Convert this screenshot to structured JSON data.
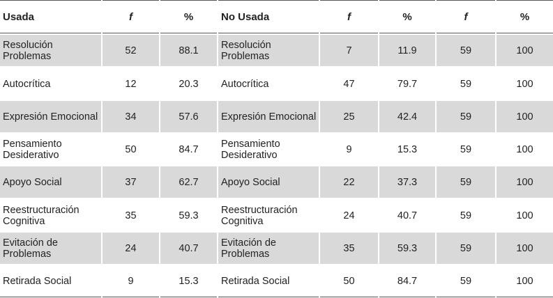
{
  "header": {
    "usada": "Usada",
    "f1": "f",
    "p1": "%",
    "no_usada": "No Usada",
    "f2": "f",
    "p2": "%",
    "f3": "f",
    "p3": "%"
  },
  "rows": [
    {
      "usada": "Resolución Problemas",
      "f1": "52",
      "p1": "88.1",
      "no_usada": "Resolución Problemas",
      "f2": "7",
      "p2": "11.9",
      "f3": "59",
      "p3": "100",
      "shaded": true
    },
    {
      "usada": "Autocrítica",
      "f1": "12",
      "p1": "20.3",
      "no_usada": "Autocrítica",
      "f2": "47",
      "p2": "79.7",
      "f3": "59",
      "p3": "100",
      "shaded": false
    },
    {
      "usada": "Expresión Emocional",
      "f1": "34",
      "p1": "57.6",
      "no_usada": "Expresión Emocional",
      "f2": "25",
      "p2": "42.4",
      "f3": "59",
      "p3": "100",
      "shaded": true
    },
    {
      "usada": "Pensamiento Desiderativo",
      "f1": "50",
      "p1": "84.7",
      "no_usada": "Pensamiento Desiderativo",
      "f2": "9",
      "p2": "15.3",
      "f3": "59",
      "p3": "100",
      "shaded": false
    },
    {
      "usada": "Apoyo Social",
      "f1": "37",
      "p1": "62.7",
      "no_usada": "Apoyo Social",
      "f2": "22",
      "p2": "37.3",
      "f3": "59",
      "p3": "100",
      "shaded": true
    },
    {
      "usada": "Reestructuración Cognitiva",
      "f1": "35",
      "p1": "59.3",
      "no_usada": "Reestructuración Cognitiva",
      "f2": "24",
      "p2": "40.7",
      "f3": "59",
      "p3": "100",
      "shaded": false
    },
    {
      "usada": "Evitación de Problemas",
      "f1": "24",
      "p1": "40.7",
      "no_usada": "Evitación de Problemas",
      "f2": "35",
      "p2": "59.3",
      "f3": "59",
      "p3": "100",
      "shaded": true
    },
    {
      "usada": "Retirada Social",
      "f1": "9",
      "p1": "15.3",
      "no_usada": "Retirada Social",
      "f2": "50",
      "p2": "84.7",
      "f3": "59",
      "p3": "100",
      "shaded": false
    }
  ]
}
